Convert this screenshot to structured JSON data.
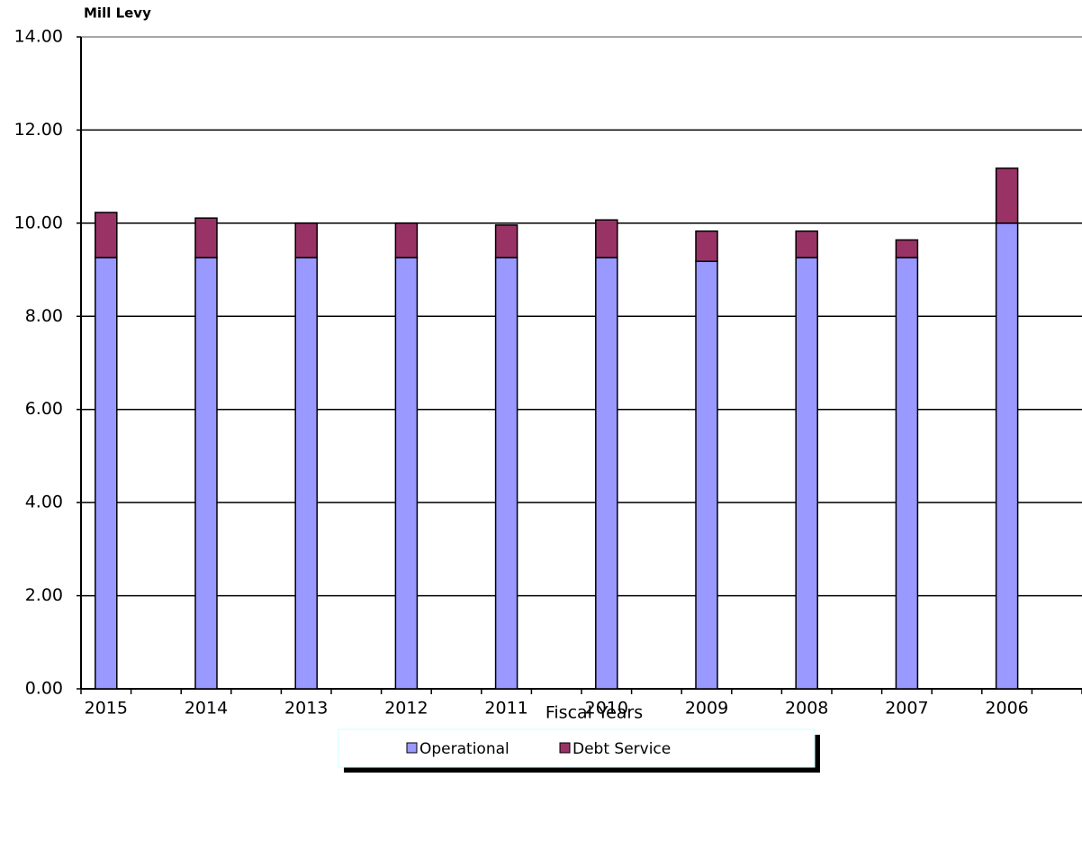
{
  "chart_data": {
    "type": "stacked_bar",
    "title": "Mill Levy",
    "x_label": "Fiscal Years",
    "categories": [
      "2015",
      "2014",
      "2013",
      "2012",
      "2011",
      "2010",
      "2009",
      "2008",
      "2007",
      "2006"
    ],
    "series": [
      {
        "name": "Operational",
        "color": "#9999ff",
        "values": [
          9.26,
          9.26,
          9.26,
          9.26,
          9.26,
          9.26,
          9.18,
          9.26,
          9.26,
          10.0
        ]
      },
      {
        "name": "Debt Service",
        "color": "#993366",
        "values": [
          0.97,
          0.85,
          0.74,
          0.74,
          0.7,
          0.81,
          0.65,
          0.57,
          0.38,
          1.18
        ]
      }
    ],
    "ylim": [
      0,
      14
    ],
    "yticks": [
      {
        "value": 0,
        "label": "0.00"
      },
      {
        "value": 2,
        "label": "2.00"
      },
      {
        "value": 4,
        "label": "4.00"
      },
      {
        "value": 6,
        "label": "6.00"
      },
      {
        "value": 8,
        "label": "8.00"
      },
      {
        "value": 10,
        "label": "10.00"
      },
      {
        "value": 12,
        "label": "12.00"
      },
      {
        "value": 14,
        "label": "14.00"
      }
    ],
    "grid": true,
    "legend": "bottom"
  }
}
